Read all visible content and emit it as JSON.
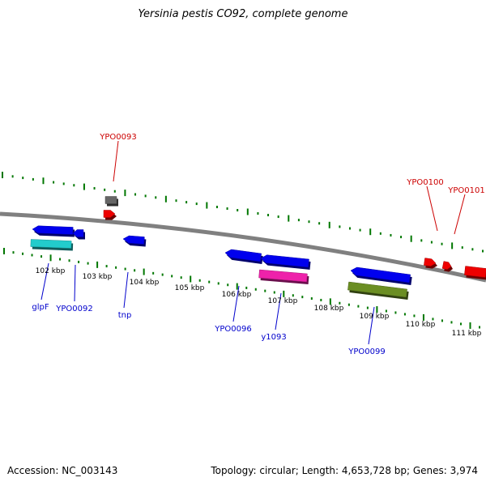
{
  "title": "Yersinia pestis CO92, complete genome",
  "footer": {
    "accession": "Accession: NC_003143",
    "summary": "Topology: circular; Length: 4,653,728 bp; Genes: 3,974"
  },
  "colors": {
    "backbone": "#808080",
    "tick": "#007700",
    "forward_label": "#cc0000",
    "reverse_label": "#0000cc",
    "gene_blue": "#0000ee",
    "gene_red": "#ee0000",
    "gene_cyan": "#22cccc",
    "gene_magenta": "#ee22aa",
    "gene_olive": "#6b8e23",
    "gene_gray": "#666666"
  },
  "scale_labels": [
    "102 kbp",
    "103 kbp",
    "104 kbp",
    "105 kbp",
    "106 kbp",
    "107 kbp",
    "108 kbp",
    "109 kbp",
    "110 kbp",
    "111 kbp"
  ],
  "gene_labels": [
    {
      "text": "YPO0093",
      "strand": "forward"
    },
    {
      "text": "YPO0100",
      "strand": "forward"
    },
    {
      "text": "YPO0101",
      "strand": "forward"
    },
    {
      "text": "glpF",
      "strand": "reverse"
    },
    {
      "text": "YPO0092",
      "strand": "reverse"
    },
    {
      "text": "tnp",
      "strand": "reverse"
    },
    {
      "text": "YPO0096",
      "strand": "reverse"
    },
    {
      "text": "y1093",
      "strand": "reverse"
    },
    {
      "text": "YPO0099",
      "strand": "reverse"
    }
  ]
}
